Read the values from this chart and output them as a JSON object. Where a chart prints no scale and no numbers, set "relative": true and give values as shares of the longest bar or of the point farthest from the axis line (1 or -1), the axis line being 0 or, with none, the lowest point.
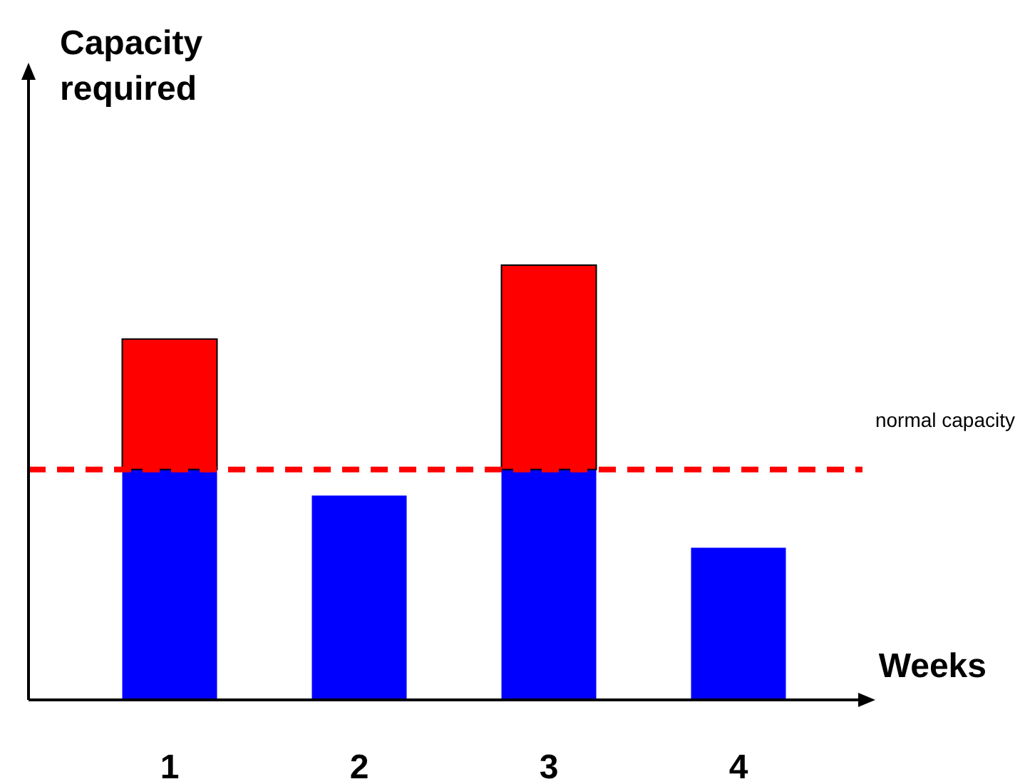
{
  "chart_data": {
    "type": "bar",
    "relative": true,
    "stacked": true,
    "xlabel": "Weeks",
    "ylabel": "Capacity required",
    "categories": [
      "1",
      "2",
      "3",
      "4"
    ],
    "series": [
      {
        "color": "#0000ff",
        "values": [
          0.53,
          0.47,
          0.53,
          0.35
        ]
      },
      {
        "color": "#ff0000",
        "values": [
          0.3,
          null,
          0.47,
          null
        ]
      }
    ],
    "ref_lines": [
      {
        "axis": "y",
        "value": 0.53,
        "label": "normal capacity",
        "color": "#ff0000",
        "line_style": "dashed"
      }
    ]
  }
}
